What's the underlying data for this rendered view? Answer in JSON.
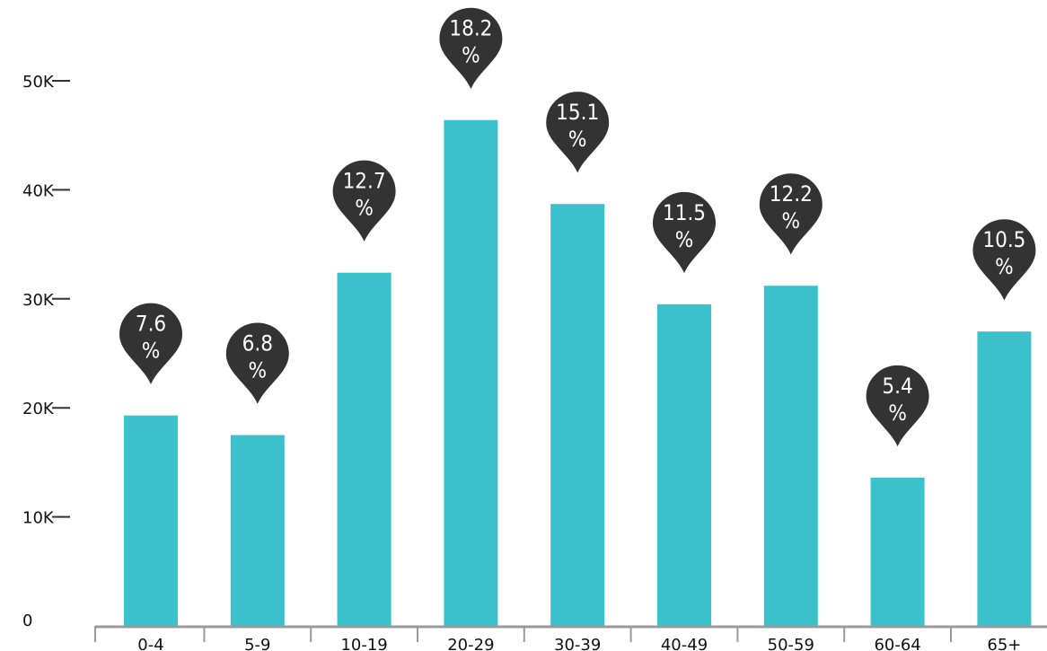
{
  "colors": {
    "bar": "#3ac1cc",
    "pin": "#333333",
    "pin_stroke": "#ffffff",
    "axis": "#9a9a9a",
    "text": "#111111"
  },
  "chart_data": {
    "type": "bar",
    "title": "",
    "xlabel": "",
    "ylabel": "",
    "categories": [
      "0-4",
      "5-9",
      "10-19",
      "20-29",
      "30-39",
      "40-49",
      "50-59",
      "60-64",
      "65+"
    ],
    "values": [
      19300,
      17500,
      32400,
      46400,
      38700,
      29500,
      31200,
      13600,
      27000
    ],
    "percent_labels": [
      "7.6",
      "6.8",
      "12.7",
      "18.2",
      "15.1",
      "11.5",
      "12.2",
      "5.4",
      "10.5"
    ],
    "percent_suffix": "%",
    "ylim": [
      0,
      50000
    ],
    "y_ticks": [
      {
        "value": 0,
        "label": "0"
      },
      {
        "value": 10000,
        "label": "10K"
      },
      {
        "value": 20000,
        "label": "20K"
      },
      {
        "value": 30000,
        "label": "30K"
      },
      {
        "value": 40000,
        "label": "40K"
      },
      {
        "value": 50000,
        "label": "50K"
      }
    ],
    "grid": false,
    "legend": "none"
  }
}
